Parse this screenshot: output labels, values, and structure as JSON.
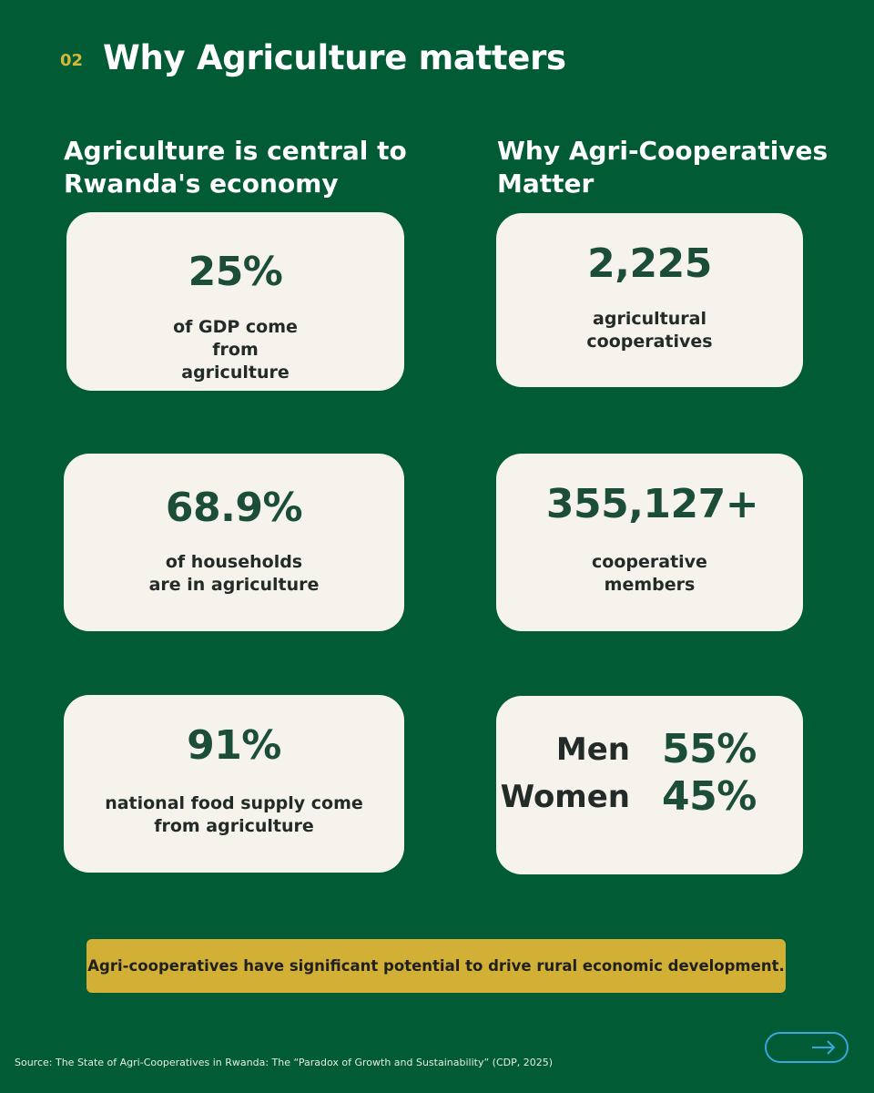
{
  "header": {
    "section_number": "02",
    "title": "Why Agriculture matters"
  },
  "left_column": {
    "heading": "Agriculture is central to Rwanda's economy",
    "cards": [
      {
        "value": "25%",
        "description": "of GDP come from agriculture"
      },
      {
        "value": "68.9%",
        "description": "of households are in agriculture"
      },
      {
        "value": "91%",
        "description": "national food supply come from agriculture"
      }
    ]
  },
  "right_column": {
    "heading": "Why Agri-Cooperatives Matter",
    "cards": [
      {
        "value": "2,225",
        "description": "agricultural cooperatives"
      },
      {
        "value": "355,127+",
        "description": "cooperative members"
      }
    ],
    "gender_split": [
      {
        "label": "Men",
        "value": "55%"
      },
      {
        "label": "Women",
        "value": "45%"
      }
    ]
  },
  "banner": {
    "text": "Agri-cooperatives have significant potential to drive rural economic development."
  },
  "footer": {
    "source": "Source: The State of Agri-Cooperatives in Rwanda: The “Paradox of Growth and Sustainability” (CDP, 2025)",
    "next_icon": "arrow-right-icon"
  },
  "colors": {
    "background": "#015c36",
    "card": "#f6f3ec",
    "accent_gold": "#d2b036",
    "number_green": "#1b4d38",
    "button_outline": "#3aa6e0"
  }
}
